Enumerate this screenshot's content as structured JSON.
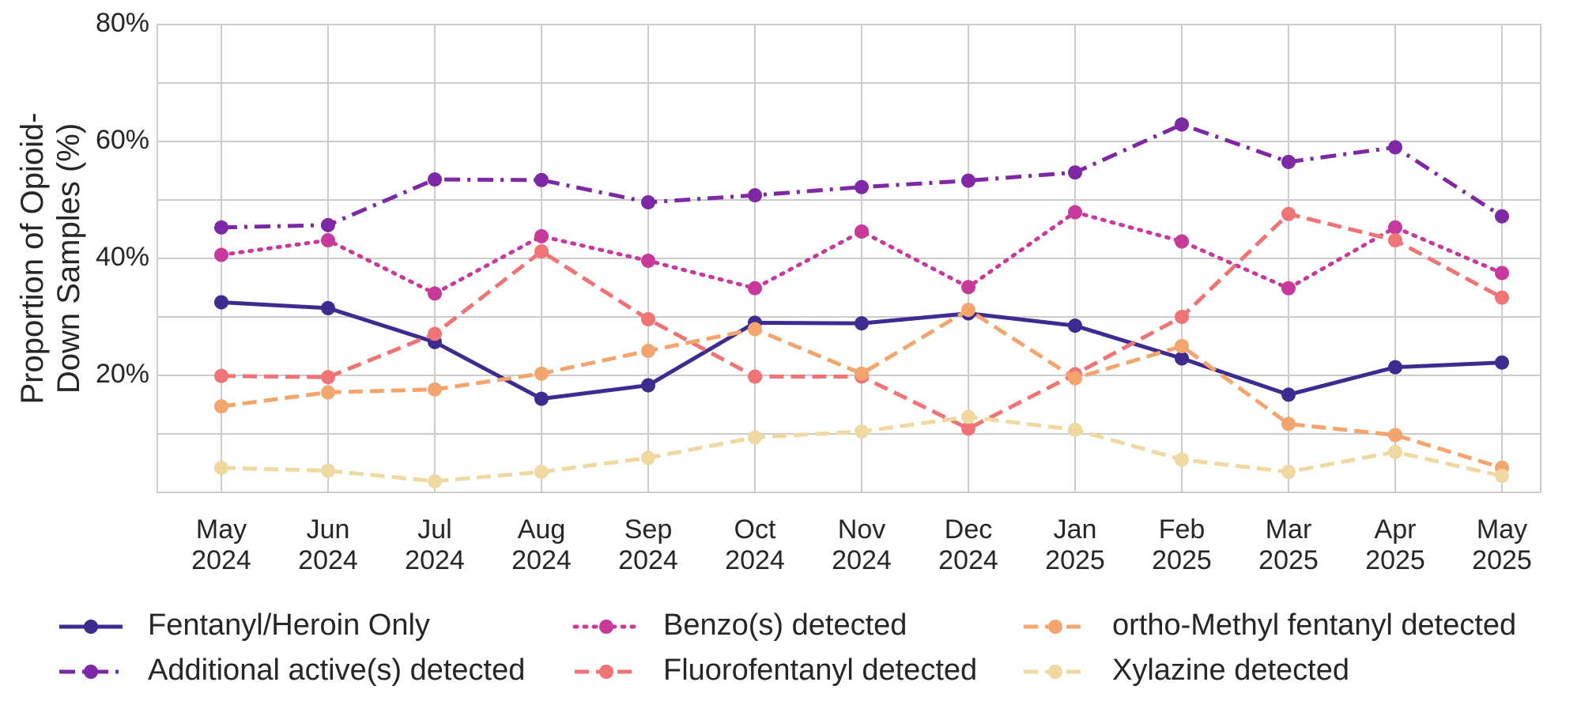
{
  "chart_data": {
    "type": "line",
    "title": "",
    "xlabel": "",
    "ylabel_lines": [
      "Proportion of Opioid-",
      "Down Samples (%)"
    ],
    "categories": [
      [
        "May",
        "2024"
      ],
      [
        "Jun",
        "2024"
      ],
      [
        "Jul",
        "2024"
      ],
      [
        "Aug",
        "2024"
      ],
      [
        "Sep",
        "2024"
      ],
      [
        "Oct",
        "2024"
      ],
      [
        "Nov",
        "2024"
      ],
      [
        "Dec",
        "2024"
      ],
      [
        "Jan",
        "2025"
      ],
      [
        "Feb",
        "2025"
      ],
      [
        "Mar",
        "2025"
      ],
      [
        "Apr",
        "2025"
      ],
      [
        "May",
        "2025"
      ]
    ],
    "ylim": [
      0,
      80
    ],
    "yticks": [
      20,
      40,
      60,
      80
    ],
    "ytick_labels": [
      "20%",
      "40%",
      "60%",
      "80%"
    ],
    "minor_grid_y": [
      10,
      30,
      50,
      70
    ],
    "grid": true,
    "legend_position": "bottom",
    "legend_columns": 3,
    "series": [
      {
        "name": "Fentanyl/Heroin Only",
        "color": "#3f2b8f",
        "line_style": "solid",
        "values": [
          32.5,
          31.5,
          25.7,
          16.0,
          18.3,
          29.0,
          28.9,
          30.6,
          28.5,
          22.9,
          16.7,
          21.4,
          22.2
        ]
      },
      {
        "name": "Additional active(s) detected",
        "color": "#7e28a5",
        "line_style": "dashdot",
        "values": [
          45.3,
          45.7,
          53.5,
          53.4,
          49.6,
          50.8,
          52.2,
          53.3,
          54.7,
          62.9,
          56.5,
          59.0,
          47.2
        ]
      },
      {
        "name": "Benzo(s) detected",
        "color": "#c73a9c",
        "line_style": "dotted",
        "values": [
          40.6,
          43.1,
          34.0,
          43.8,
          39.6,
          34.9,
          44.6,
          35.1,
          47.9,
          42.9,
          34.9,
          45.3,
          37.5
        ]
      },
      {
        "name": "Fluorofentanyl detected",
        "color": "#f07375",
        "line_style": "dashed",
        "values": [
          19.9,
          19.7,
          27.1,
          41.2,
          29.6,
          19.8,
          19.8,
          10.9,
          20.2,
          30.0,
          47.6,
          43.1,
          33.3
        ]
      },
      {
        "name": "ortho-Methyl fentanyl detected",
        "color": "#f4a56d",
        "line_style": "dashed",
        "values": [
          14.7,
          17.1,
          17.6,
          20.3,
          24.2,
          27.9,
          20.3,
          31.2,
          19.5,
          25.0,
          11.7,
          9.8,
          4.2
        ]
      },
      {
        "name": "Xylazine detected",
        "color": "#efd9a0",
        "line_style": "dashed",
        "values": [
          4.2,
          3.7,
          1.9,
          3.5,
          5.9,
          9.4,
          10.4,
          12.9,
          10.7,
          5.6,
          3.5,
          6.9,
          2.8
        ]
      }
    ]
  }
}
